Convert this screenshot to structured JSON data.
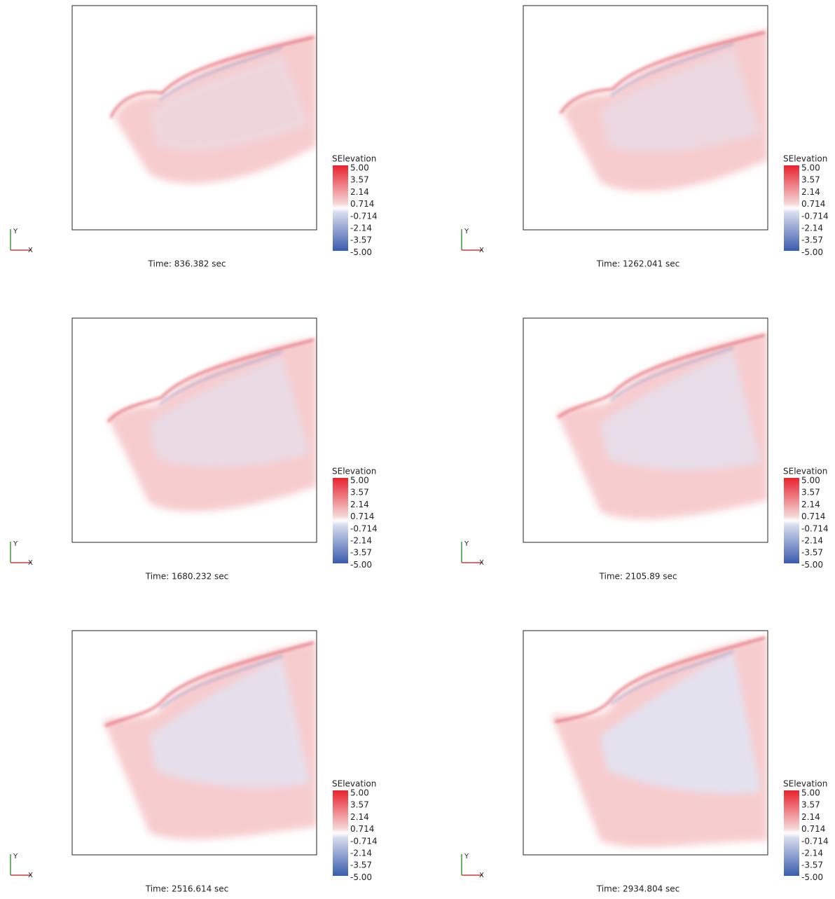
{
  "panels": [
    {
      "time": "Time:  836.382 sec"
    },
    {
      "time": "Time:  1262.041 sec"
    },
    {
      "time": "Time:  1680.232 sec"
    },
    {
      "time": "Time:  2105.89 sec"
    },
    {
      "time": "Time:  2516.614 sec"
    },
    {
      "time": "Time:  2934.804 sec"
    }
  ],
  "colorbar": {
    "title": "SElevation",
    "labels": [
      "5.00",
      "3.57",
      "2.14",
      "0.714",
      "-0.714",
      "-2.14",
      "-3.57",
      "-5.00"
    ]
  },
  "axes": {
    "y": "Y",
    "x": "X"
  }
}
